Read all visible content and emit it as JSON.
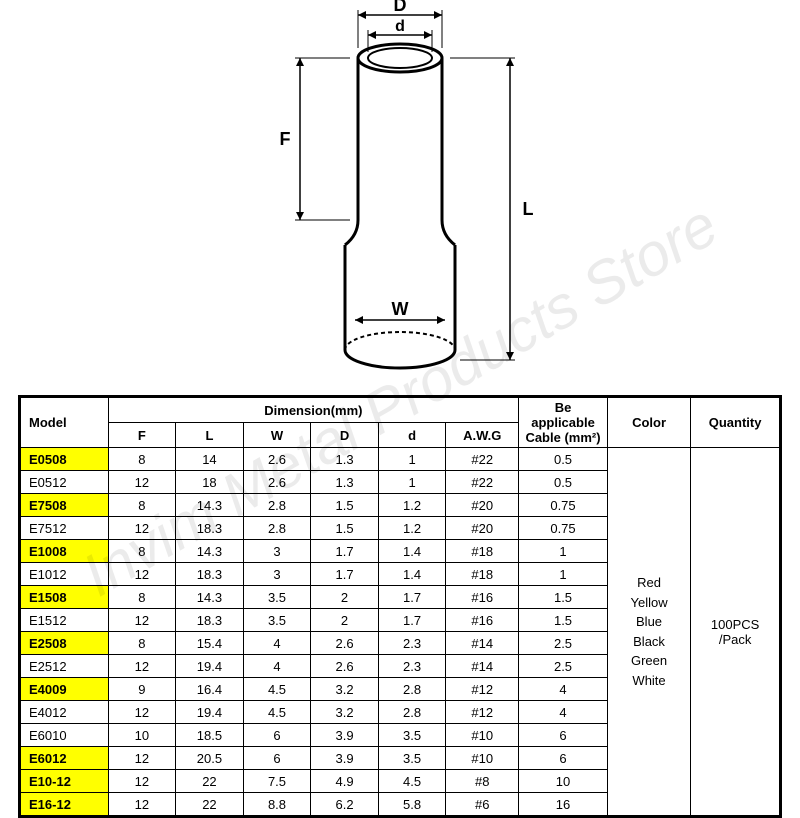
{
  "watermark_text": "Invim Metal Products Store",
  "diagram": {
    "labels": {
      "D": "D",
      "d": "d",
      "F": "F",
      "L": "L",
      "W": "W"
    },
    "stroke_color": "#000000",
    "stroke_width": 2
  },
  "table": {
    "header": {
      "model": "Model",
      "dimension_group": "Dimension(mm)",
      "cable": "Be applicable Cable (mm²)",
      "color": "Color",
      "quantity": "Quantity",
      "F": "F",
      "L": "L",
      "W": "W",
      "D": "D",
      "d": "d",
      "AWG": "A.W.G"
    },
    "colors_text": "Red\nYellow\nBlue\nBlack\nGreen\nWhite",
    "quantity_text": "100PCS\n/Pack",
    "highlight_color": "#ffff00",
    "border_color": "#000000",
    "rows": [
      {
        "model": "E0508",
        "F": "8",
        "L": "14",
        "W": "2.6",
        "D": "1.3",
        "d": "1",
        "AWG": "#22",
        "cable": "0.5",
        "hl": true
      },
      {
        "model": "E0512",
        "F": "12",
        "L": "18",
        "W": "2.6",
        "D": "1.3",
        "d": "1",
        "AWG": "#22",
        "cable": "0.5",
        "hl": false
      },
      {
        "model": "E7508",
        "F": "8",
        "L": "14.3",
        "W": "2.8",
        "D": "1.5",
        "d": "1.2",
        "AWG": "#20",
        "cable": "0.75",
        "hl": true
      },
      {
        "model": "E7512",
        "F": "12",
        "L": "18.3",
        "W": "2.8",
        "D": "1.5",
        "d": "1.2",
        "AWG": "#20",
        "cable": "0.75",
        "hl": false
      },
      {
        "model": "E1008",
        "F": "8",
        "L": "14.3",
        "W": "3",
        "D": "1.7",
        "d": "1.4",
        "AWG": "#18",
        "cable": "1",
        "hl": true
      },
      {
        "model": "E1012",
        "F": "12",
        "L": "18.3",
        "W": "3",
        "D": "1.7",
        "d": "1.4",
        "AWG": "#18",
        "cable": "1",
        "hl": false
      },
      {
        "model": "E1508",
        "F": "8",
        "L": "14.3",
        "W": "3.5",
        "D": "2",
        "d": "1.7",
        "AWG": "#16",
        "cable": "1.5",
        "hl": true
      },
      {
        "model": "E1512",
        "F": "12",
        "L": "18.3",
        "W": "3.5",
        "D": "2",
        "d": "1.7",
        "AWG": "#16",
        "cable": "1.5",
        "hl": false
      },
      {
        "model": "E2508",
        "F": "8",
        "L": "15.4",
        "W": "4",
        "D": "2.6",
        "d": "2.3",
        "AWG": "#14",
        "cable": "2.5",
        "hl": true
      },
      {
        "model": "E2512",
        "F": "12",
        "L": "19.4",
        "W": "4",
        "D": "2.6",
        "d": "2.3",
        "AWG": "#14",
        "cable": "2.5",
        "hl": false
      },
      {
        "model": "E4009",
        "F": "9",
        "L": "16.4",
        "W": "4.5",
        "D": "3.2",
        "d": "2.8",
        "AWG": "#12",
        "cable": "4",
        "hl": true
      },
      {
        "model": "E4012",
        "F": "12",
        "L": "19.4",
        "W": "4.5",
        "D": "3.2",
        "d": "2.8",
        "AWG": "#12",
        "cable": "4",
        "hl": false
      },
      {
        "model": "E6010",
        "F": "10",
        "L": "18.5",
        "W": "6",
        "D": "3.9",
        "d": "3.5",
        "AWG": "#10",
        "cable": "6",
        "hl": false
      },
      {
        "model": "E6012",
        "F": "12",
        "L": "20.5",
        "W": "6",
        "D": "3.9",
        "d": "3.5",
        "AWG": "#10",
        "cable": "6",
        "hl": true
      },
      {
        "model": "E10-12",
        "F": "12",
        "L": "22",
        "W": "7.5",
        "D": "4.9",
        "d": "4.5",
        "AWG": "#8",
        "cable": "10",
        "hl": true
      },
      {
        "model": "E16-12",
        "F": "12",
        "L": "22",
        "W": "8.8",
        "D": "6.2",
        "d": "5.8",
        "AWG": "#6",
        "cable": "16",
        "hl": true
      }
    ]
  }
}
